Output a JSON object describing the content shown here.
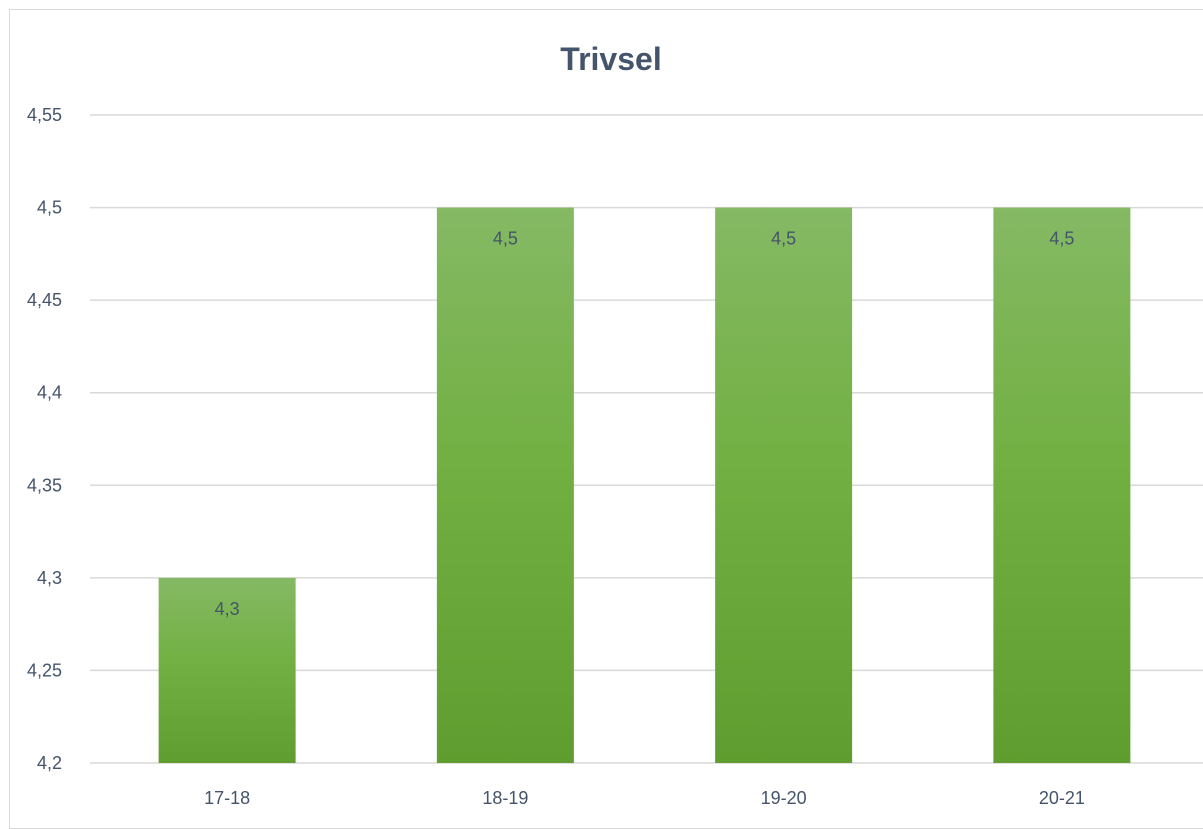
{
  "chart_data": {
    "type": "bar",
    "title": "Trivsel",
    "categories": [
      "17-18",
      "18-19",
      "19-20",
      "20-21"
    ],
    "values": [
      4.3,
      4.5,
      4.5,
      4.5
    ],
    "value_labels": [
      "4,3",
      "4,5",
      "4,5",
      "4,5"
    ],
    "xlabel": "",
    "ylabel": "",
    "ylim": [
      4.2,
      4.55
    ],
    "yticks": [
      4.2,
      4.25,
      4.3,
      4.35,
      4.4,
      4.45,
      4.5,
      4.55
    ],
    "ytick_labels": [
      "4,2",
      "4,25",
      "4,3",
      "4,35",
      "4,4",
      "4,45",
      "4,5",
      "4,55"
    ],
    "grid": true,
    "legend": "none",
    "colors": {
      "bar_top": "#85b964",
      "bar_mid": "#72b043",
      "bar_bottom": "#5f9d30",
      "grid": "#d9d9d9",
      "text": "#44546a"
    }
  }
}
